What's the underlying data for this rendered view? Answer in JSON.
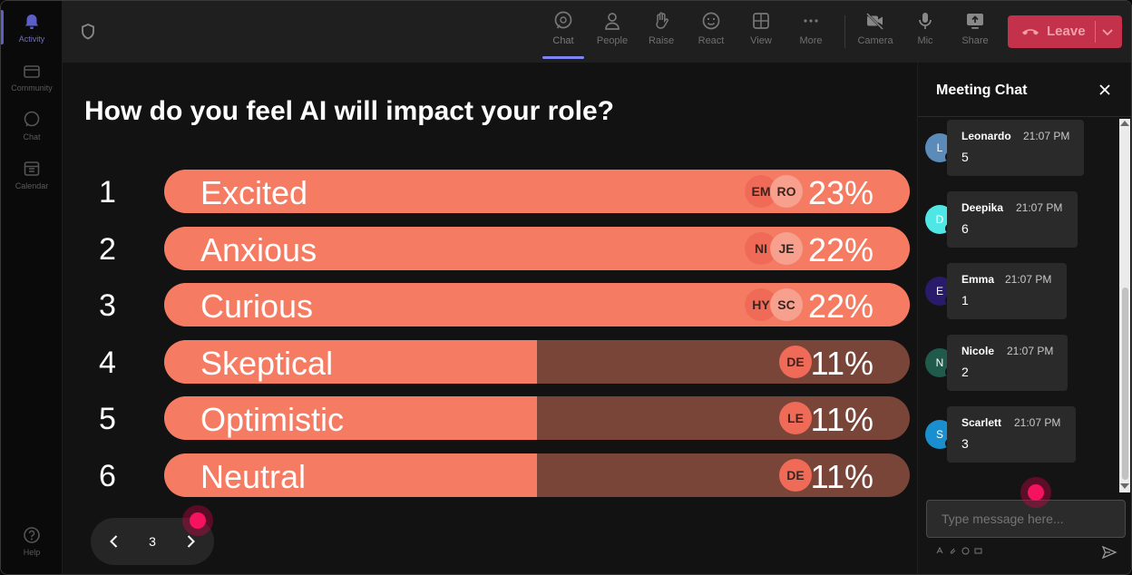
{
  "rail": {
    "items": [
      {
        "label": "Activity",
        "icon": "bell-icon"
      },
      {
        "label": "Community",
        "icon": "community-icon"
      },
      {
        "label": "Chat",
        "icon": "chat-icon"
      },
      {
        "label": "Calendar",
        "icon": "calendar-icon"
      },
      {
        "label": "Help",
        "icon": "help-icon"
      }
    ]
  },
  "toolbar": {
    "chat": "Chat",
    "people": "People",
    "raise": "Raise",
    "react": "React",
    "view": "View",
    "more": "More",
    "camera": "Camera",
    "mic": "Mic",
    "share": "Share",
    "leave": "Leave"
  },
  "poll": {
    "question": "How do you feel AI will impact your role?",
    "options": [
      {
        "num": "1",
        "label": "Excited",
        "pct": "23%",
        "fraction": 1.0,
        "avatars": [
          "EM",
          "RO"
        ]
      },
      {
        "num": "2",
        "label": "Anxious",
        "pct": "22%",
        "fraction": 1.0,
        "avatars": [
          "NI",
          "JE"
        ]
      },
      {
        "num": "3",
        "label": "Curious",
        "pct": "22%",
        "fraction": 1.0,
        "avatars": [
          "HY",
          "SC"
        ]
      },
      {
        "num": "4",
        "label": "Skeptical",
        "pct": "11%",
        "fraction": 0.5,
        "avatars": [
          "DE"
        ]
      },
      {
        "num": "5",
        "label": "Optimistic",
        "pct": "11%",
        "fraction": 0.5,
        "avatars": [
          "LE"
        ]
      },
      {
        "num": "6",
        "label": "Neutral",
        "pct": "11%",
        "fraction": 0.5,
        "avatars": [
          "DE"
        ]
      }
    ],
    "page": "3"
  },
  "chat": {
    "title": "Meeting Chat",
    "input_placeholder": "Type message here...",
    "messages": [
      {
        "initial": "L",
        "name": "Leonardo",
        "time": "21:07 PM",
        "text": "5",
        "color": "#5b8bb8"
      },
      {
        "initial": "D",
        "name": "Deepika",
        "time": "21:07 PM",
        "text": "6",
        "color": "#4fe6e6"
      },
      {
        "initial": "E",
        "name": "Emma",
        "time": "21:07 PM",
        "text": "1",
        "color": "#2a1a6a"
      },
      {
        "initial": "N",
        "name": "Nicole",
        "time": "21:07 PM",
        "text": "2",
        "color": "#1f5a4a"
      },
      {
        "initial": "S",
        "name": "Scarlett",
        "time": "21:07 PM",
        "text": "3",
        "color": "#1a8fd0"
      }
    ]
  },
  "colors": {
    "bar_fill": "#f57c62",
    "bar_track": "#7a4539",
    "leave": "#c4314b",
    "accent": "#7f85f5"
  }
}
